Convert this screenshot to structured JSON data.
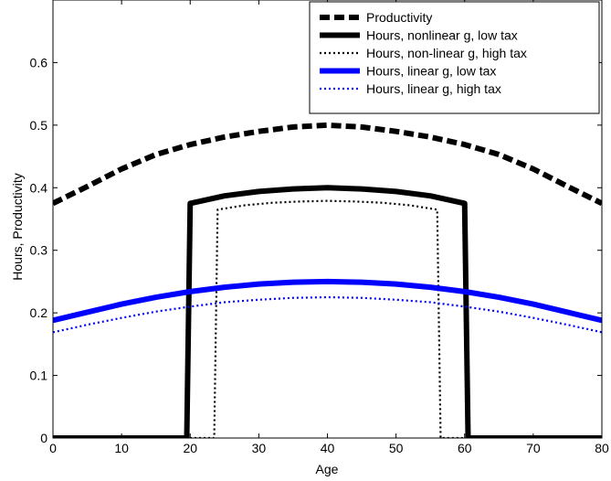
{
  "chart_data": {
    "type": "line",
    "title": "",
    "xlabel": "Age",
    "ylabel": "Hours, Productivity",
    "xlim": [
      0,
      80
    ],
    "ylim": [
      0,
      0.7
    ],
    "xticks": [
      0,
      10,
      20,
      30,
      40,
      50,
      60,
      70,
      80
    ],
    "yticks": [
      0,
      0.1,
      0.2,
      0.3,
      0.4,
      0.5,
      0.6
    ],
    "grid": false,
    "legend_position": "top-right",
    "series": [
      {
        "name": "Productivity",
        "color": "#000000",
        "style": "dashed-thick",
        "x": [
          0,
          5,
          10,
          15,
          20,
          25,
          30,
          35,
          40,
          45,
          50,
          55,
          60,
          65,
          70,
          75,
          80
        ],
        "y": [
          0.375,
          0.402,
          0.43,
          0.453,
          0.469,
          0.481,
          0.49,
          0.497,
          0.5,
          0.497,
          0.49,
          0.481,
          0.469,
          0.453,
          0.43,
          0.402,
          0.375
        ]
      },
      {
        "name": "Hours, nonlinear g, low tax",
        "color": "#000000",
        "style": "solid-thick",
        "x": [
          0,
          19.5,
          20,
          25,
          30,
          35,
          40,
          45,
          50,
          55,
          60,
          60.5,
          80
        ],
        "y": [
          0,
          0,
          0.375,
          0.387,
          0.394,
          0.398,
          0.4,
          0.398,
          0.394,
          0.387,
          0.375,
          0,
          0
        ]
      },
      {
        "name": "Hours, non-linear g, high tax",
        "color": "#000000",
        "style": "dotted",
        "x": [
          0,
          23.5,
          24,
          28,
          32,
          36,
          40,
          44,
          48,
          52,
          56,
          56.5,
          80
        ],
        "y": [
          0,
          0,
          0.365,
          0.372,
          0.376,
          0.378,
          0.379,
          0.378,
          0.376,
          0.372,
          0.365,
          0,
          0
        ]
      },
      {
        "name": "Hours, linear g, low tax",
        "color": "#0000ff",
        "style": "solid-thick",
        "x": [
          0,
          5,
          10,
          15,
          20,
          25,
          30,
          35,
          40,
          45,
          50,
          55,
          60,
          65,
          70,
          75,
          80
        ],
        "y": [
          0.188,
          0.201,
          0.214,
          0.225,
          0.234,
          0.241,
          0.246,
          0.249,
          0.25,
          0.249,
          0.246,
          0.241,
          0.234,
          0.225,
          0.214,
          0.201,
          0.188
        ]
      },
      {
        "name": "Hours, linear g, high tax",
        "color": "#0000ff",
        "style": "dotted",
        "x": [
          0,
          5,
          10,
          15,
          20,
          25,
          30,
          35,
          40,
          45,
          50,
          55,
          60,
          65,
          70,
          75,
          80
        ],
        "y": [
          0.169,
          0.181,
          0.192,
          0.202,
          0.21,
          0.217,
          0.221,
          0.224,
          0.225,
          0.224,
          0.221,
          0.217,
          0.21,
          0.202,
          0.192,
          0.181,
          0.169
        ]
      }
    ]
  }
}
